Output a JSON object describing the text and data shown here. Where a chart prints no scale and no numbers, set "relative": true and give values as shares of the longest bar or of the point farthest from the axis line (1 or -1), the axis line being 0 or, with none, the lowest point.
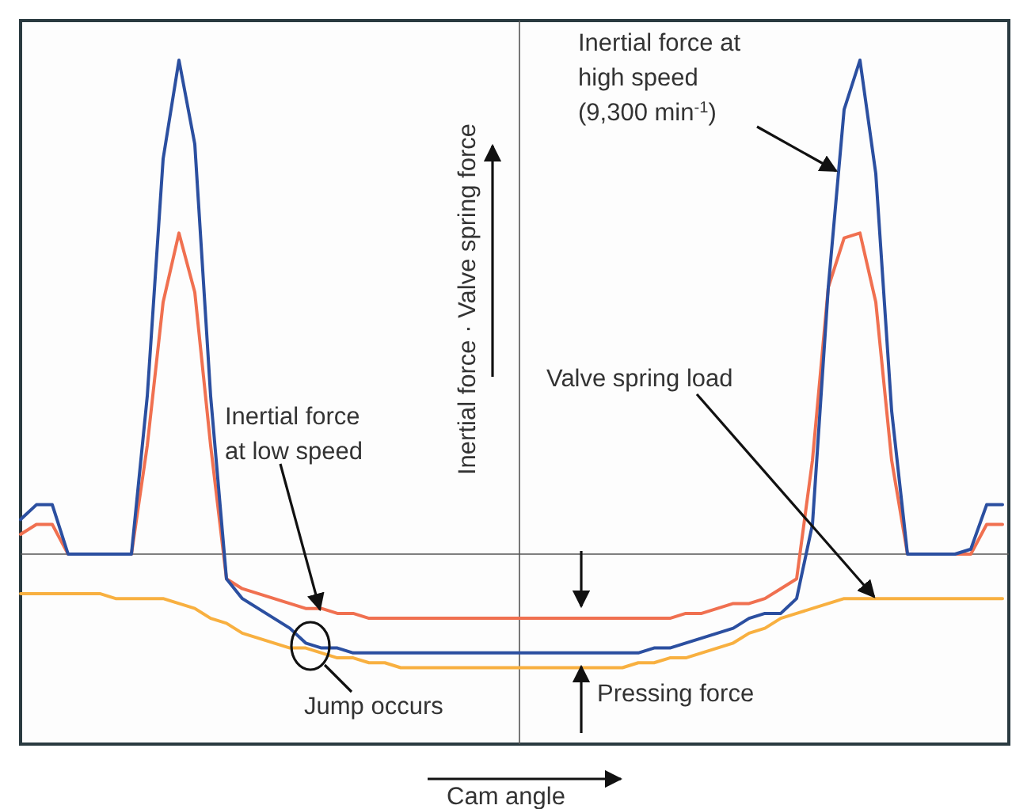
{
  "chart_data": {
    "type": "line",
    "relative": true,
    "xlabel": "Cam angle",
    "ylabel": "Inertial force · Valve spring force",
    "categories": [
      null,
      null,
      null,
      null,
      null,
      null,
      null,
      null,
      null,
      null,
      null,
      null,
      null,
      null,
      null,
      null,
      null,
      null,
      null,
      null,
      null,
      null,
      null,
      null,
      null,
      null,
      null,
      null,
      null,
      null,
      null,
      null,
      null,
      null,
      null,
      null,
      null,
      null,
      null,
      null,
      null,
      null,
      null,
      null,
      null,
      null,
      null,
      null,
      null,
      null,
      null,
      null,
      null,
      null,
      null,
      null,
      null,
      null,
      null,
      null,
      null,
      null,
      null
    ],
    "series": [
      {
        "color": "#f8b040",
        "values": [
          -0.08,
          -0.08,
          -0.08,
          -0.08,
          -0.08,
          -0.08,
          -0.09,
          -0.09,
          -0.09,
          -0.09,
          -0.1,
          -0.11,
          -0.13,
          -0.14,
          -0.16,
          -0.17,
          -0.18,
          -0.19,
          -0.19,
          -0.2,
          -0.21,
          -0.21,
          -0.22,
          -0.22,
          -0.23,
          -0.23,
          -0.23,
          -0.23,
          -0.23,
          -0.23,
          -0.23,
          -0.23,
          -0.23,
          -0.23,
          -0.23,
          -0.23,
          -0.23,
          -0.23,
          -0.23,
          -0.22,
          -0.22,
          -0.21,
          -0.21,
          -0.2,
          -0.19,
          -0.18,
          -0.16,
          -0.15,
          -0.13,
          -0.12,
          -0.11,
          -0.1,
          -0.09,
          -0.09,
          -0.09,
          -0.09,
          -0.09,
          -0.09,
          -0.09,
          -0.09,
          -0.09,
          -0.09,
          -0.09
        ]
      },
      {
        "color": "#f07050",
        "values": [
          0.04,
          0.06,
          0.06,
          0,
          0,
          0,
          0,
          0,
          0.22,
          0.51,
          0.65,
          0.53,
          0.22,
          -0.05,
          -0.07,
          -0.08,
          -0.09,
          -0.1,
          -0.11,
          -0.11,
          -0.12,
          -0.12,
          -0.13,
          -0.13,
          -0.13,
          -0.13,
          -0.13,
          -0.13,
          -0.13,
          -0.13,
          -0.13,
          -0.13,
          -0.13,
          -0.13,
          -0.13,
          -0.13,
          -0.13,
          -0.13,
          -0.13,
          -0.13,
          -0.13,
          -0.13,
          -0.12,
          -0.12,
          -0.11,
          -0.1,
          -0.1,
          -0.09,
          -0.07,
          -0.05,
          0.19,
          0.54,
          0.64,
          0.65,
          0.51,
          0.19,
          0,
          0,
          0,
          0,
          0,
          0.06,
          0.06
        ]
      },
      {
        "color": "#2b4fa0",
        "values": [
          0.07,
          0.1,
          0.1,
          0,
          0,
          0,
          0,
          0,
          0.32,
          0.8,
          1,
          0.83,
          0.32,
          -0.05,
          -0.09,
          -0.11,
          -0.13,
          -0.15,
          -0.18,
          -0.19,
          -0.19,
          -0.2,
          -0.2,
          -0.2,
          -0.2,
          -0.2,
          -0.2,
          -0.2,
          -0.2,
          -0.2,
          -0.2,
          -0.2,
          -0.2,
          -0.2,
          -0.2,
          -0.2,
          -0.2,
          -0.2,
          -0.2,
          -0.2,
          -0.19,
          -0.19,
          -0.18,
          -0.17,
          -0.16,
          -0.15,
          -0.13,
          -0.12,
          -0.12,
          -0.09,
          0.06,
          0.54,
          0.9,
          1,
          0.77,
          0.29,
          0,
          0,
          0,
          0,
          0.01,
          0.1,
          0.1
        ]
      }
    ],
    "annotations": [
      "Inertial force\nat low speed",
      "Inertial force at\nhigh speed\n(9,300 min$^{-1}$)",
      "Valve spring load",
      "Jump occurs",
      "Pressing force"
    ],
    "grid": false,
    "marker": "none",
    "line_style": "solid"
  }
}
